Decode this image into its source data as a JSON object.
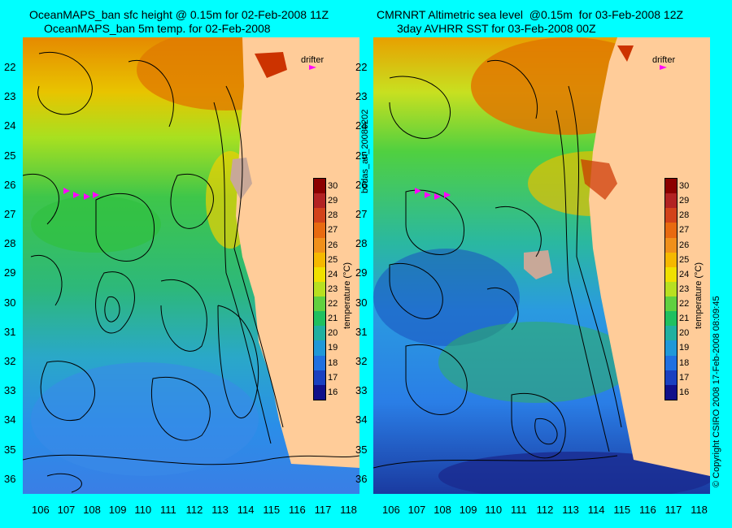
{
  "left": {
    "title1": "OceanMAPS_ban sfc height @ 0.15m for 02-Feb-2008 11Z",
    "title2": "OceanMAPS_ban 5m temp. for 02-Feb-2008"
  },
  "right": {
    "title1": "CMRNRT Altimetric sea level  @0.15m  for 03-Feb-2008 12Z",
    "title2": "3day AVHRR SST for 03-Feb-2008 00Z"
  },
  "lat_ticks": [
    "22",
    "23",
    "24",
    "25",
    "26",
    "27",
    "28",
    "29",
    "30",
    "31",
    "32",
    "33",
    "34",
    "35",
    "36"
  ],
  "lon_ticks": [
    "106",
    "107",
    "108",
    "109",
    "110",
    "111",
    "112",
    "113",
    "114",
    "115",
    "116",
    "117",
    "118"
  ],
  "colorbar": {
    "label": "temperature (°C)",
    "ticks": [
      "30",
      "29",
      "28",
      "27",
      "26",
      "25",
      "24",
      "23",
      "22",
      "21",
      "20",
      "19",
      "18",
      "17",
      "16"
    ]
  },
  "legend": {
    "drifter": "drifter"
  },
  "side_text": {
    "middle": "bodas_an_20080202",
    "right": "© Copyright CSIRO 2008   17-Feb-2008 08:09:45"
  },
  "colors": {
    "background": "#00ffff",
    "land": "#ffcc99",
    "drifter": "#ff00ff"
  }
}
